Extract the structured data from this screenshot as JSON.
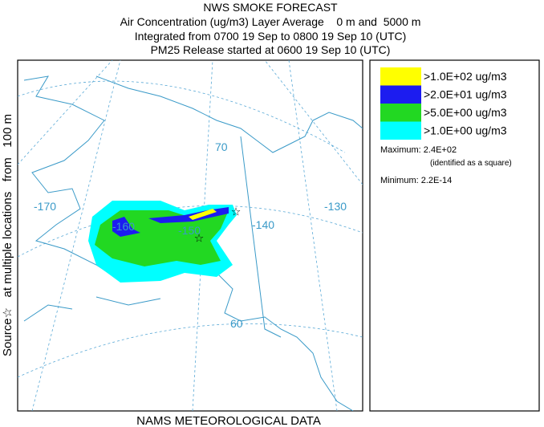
{
  "header": {
    "title": "NWS SMOKE FORECAST",
    "lines": [
      "Air Concentration (ug/m3) Layer Average    0 m and  5000 m",
      "Integrated from 0700 19 Sep to 0800 19 Sep 10 (UTC)",
      "PM25 Release started at 0600 19 Sep 10 (UTC)"
    ]
  },
  "side_label": "Source☆   at multiple locations   from   100 m",
  "footer": "NAMS METEOROLOGICAL DATA",
  "map": {
    "labels": [
      "-170",
      "-160",
      "-150",
      "-140",
      "-130",
      "70",
      "60"
    ]
  },
  "legend": {
    "entries": [
      {
        "label": ">1.0E+02 ug/m3",
        "color": "#ffff00"
      },
      {
        "label": ">2.0E+01 ug/m3",
        "color": "#1c1cf0"
      },
      {
        "label": ">5.0E+00 ug/m3",
        "color": "#22d822"
      },
      {
        "label": ">1.0E+00 ug/m3",
        "color": "#00ffff"
      }
    ],
    "maximum": "Maximum: 2.4E+02",
    "max_note": "(identified as a square)",
    "minimum": "Minimum: 2.2E-14"
  }
}
